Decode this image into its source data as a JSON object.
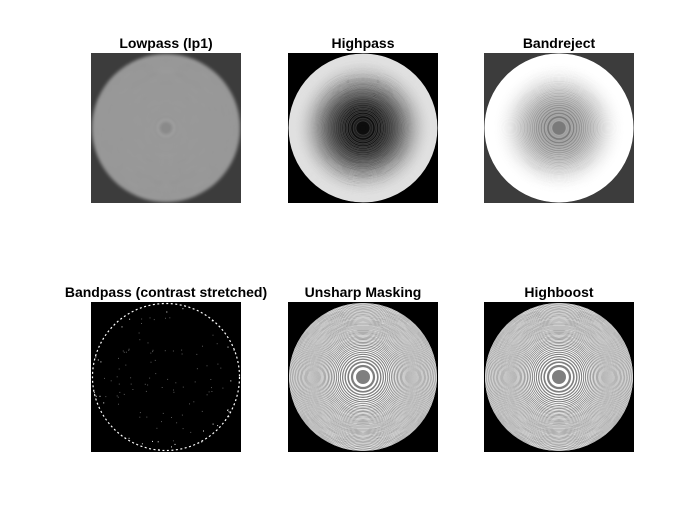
{
  "figure": {
    "panels": [
      {
        "title": "Lowpass (lp1)",
        "style": "lowpass",
        "background": "#3c3c3c"
      },
      {
        "title": "Highpass",
        "style": "highpass",
        "background": "#000000"
      },
      {
        "title": "Bandreject",
        "style": "bandreject",
        "background": "#3c3c3c"
      },
      {
        "title": "Bandpass (contrast stretched)",
        "style": "bandpass",
        "background": "#000000"
      },
      {
        "title": "Unsharp Masking",
        "style": "unsharp",
        "background": "#000000"
      },
      {
        "title": "Highboost",
        "style": "highboost",
        "background": "#000000"
      }
    ]
  }
}
